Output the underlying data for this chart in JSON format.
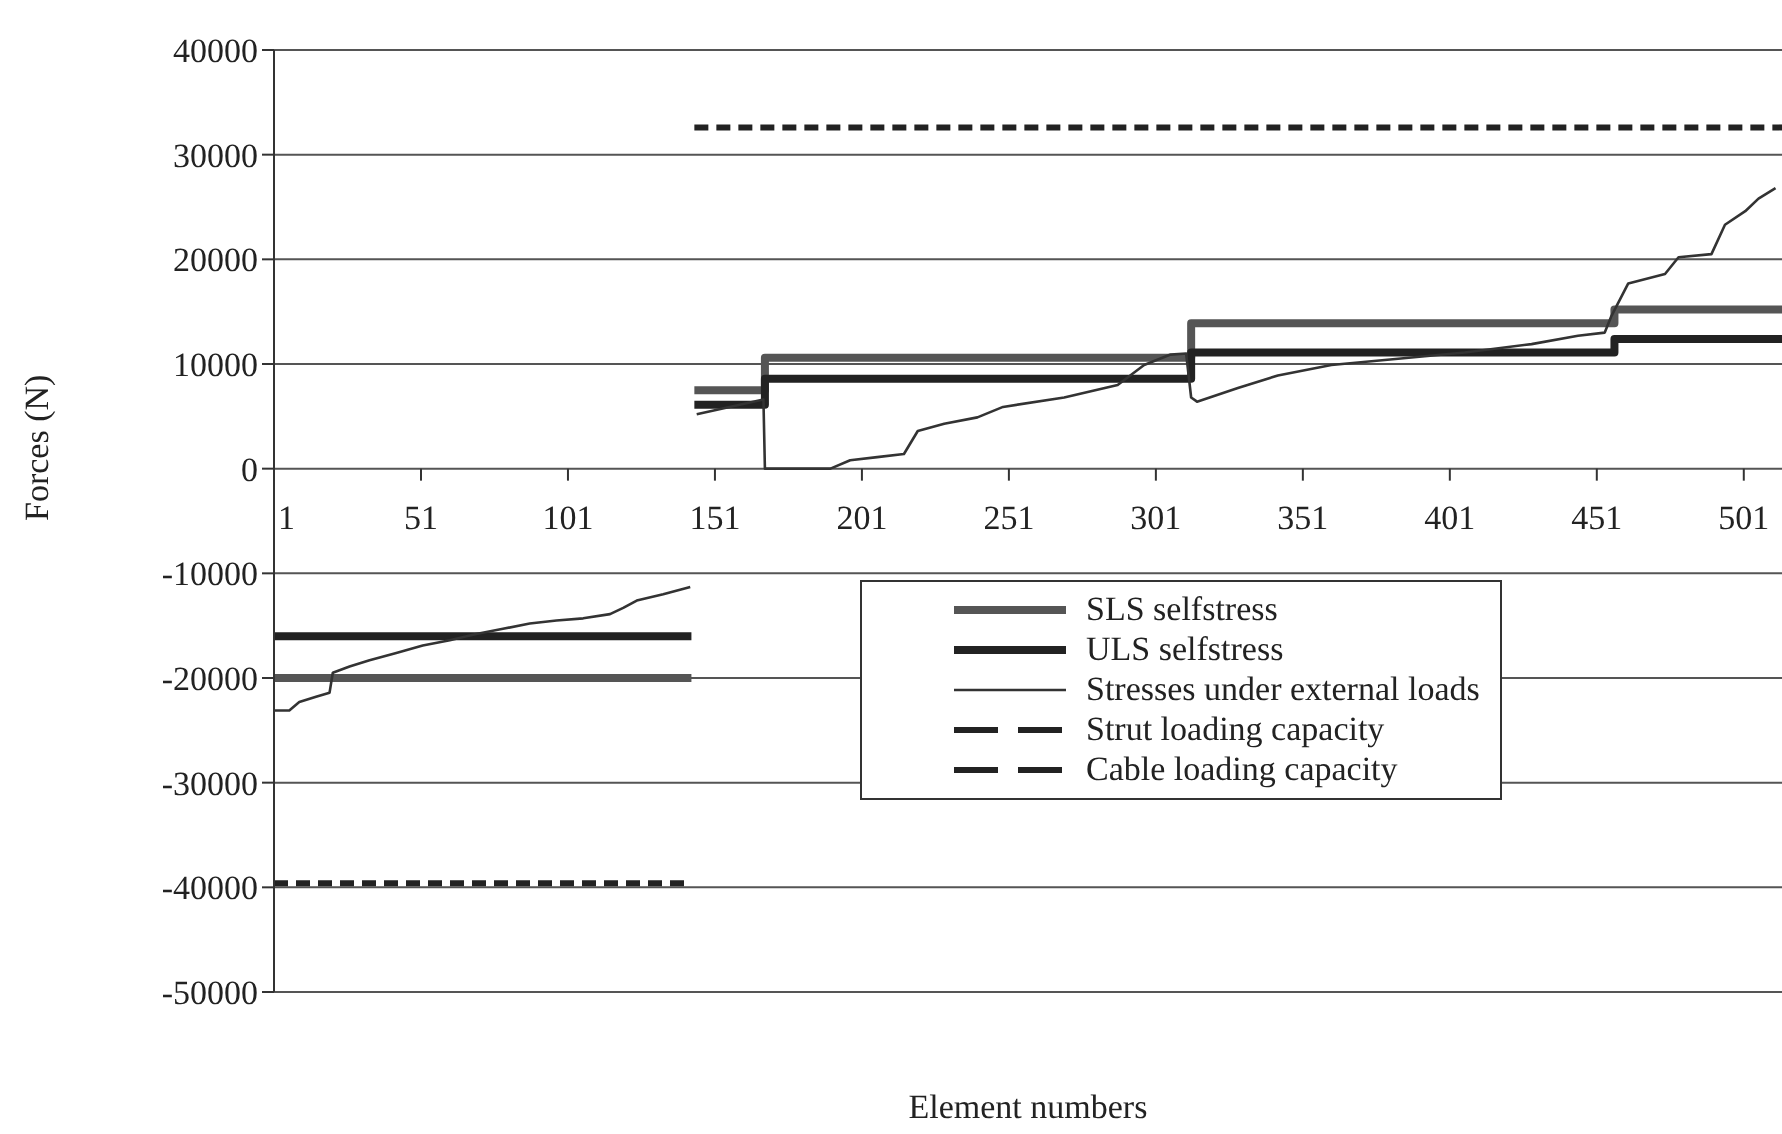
{
  "chart_data": {
    "type": "line",
    "xlabel": "Element numbers",
    "ylabel": "Forces (N)",
    "xlim": [
      1,
      514
    ],
    "xticks": [
      1,
      51,
      101,
      151,
      201,
      251,
      301,
      351,
      401,
      451,
      501
    ],
    "ylim": [
      -50000,
      40000
    ],
    "yticks": [
      -50000,
      -40000,
      -30000,
      -20000,
      -10000,
      0,
      10000,
      20000,
      30000,
      40000
    ],
    "grid": "y",
    "legend": "bottom right",
    "marker": "none",
    "series": [
      {
        "name": "SLS selfstress",
        "color": "#555555",
        "line_style": "solid",
        "x": [
          1,
          143,
          143.5,
          144,
          168,
          168,
          313,
          313,
          457,
          457,
          514
        ],
        "values": [
          -20000,
          -20000,
          null,
          7500,
          7500,
          10600,
          10600,
          13900,
          13900,
          15200,
          15200
        ]
      },
      {
        "name": "ULS selfstress",
        "color": "#222222",
        "line_style": "solid",
        "x": [
          1,
          143,
          143.5,
          144,
          168,
          168,
          313,
          313,
          457,
          457,
          514
        ],
        "values": [
          -16000,
          -16000,
          null,
          6100,
          6100,
          8600,
          8600,
          11100,
          11100,
          12400,
          12400
        ]
      },
      {
        "name": "Stresses under external loads",
        "color": "#333333",
        "line_style": "solid",
        "x": [
          1,
          6.2,
          9.6,
          15.3,
          19.9,
          21,
          26.7,
          33.5,
          42.6,
          51.6,
          60.8,
          69.8,
          78.9,
          88,
          97.1,
          106.2,
          115.3,
          119.8,
          124.4,
          133.4,
          142.6,
          143.5,
          144.8,
          167.5,
          168,
          190.3,
          197,
          206.2,
          215.3,
          220,
          229,
          240.3,
          249,
          269.8,
          288,
          297,
          306,
          311.3,
          313,
          315,
          328.9,
          342.5,
          360.7,
          383.4,
          406.1,
          428.8,
          444.6,
          453.7,
          456,
          461.7,
          474.2,
          478.8,
          490,
          494.6,
          501.5,
          506,
          511.8
        ],
        "values": [
          -23100,
          -23100,
          -22300,
          -21800,
          -21400,
          -19500,
          -18900,
          -18300,
          -17600,
          -16900,
          -16400,
          -15800,
          -15300,
          -14800,
          -14500,
          -14300,
          -13900,
          -13300,
          -12600,
          -12000,
          -11300,
          null,
          5200,
          6600,
          0,
          0,
          800,
          1100,
          1400,
          3600,
          4300,
          4900,
          5900,
          6800,
          8000,
          9900,
          10900,
          11000,
          6800,
          6400,
          7700,
          8900,
          9900,
          10500,
          11100,
          11900,
          12700,
          13000,
          14600,
          17700,
          18600,
          20200,
          20500,
          23300,
          24600,
          25800,
          26800
        ]
      },
      {
        "name": "Strut loading capacity",
        "color": "#222222",
        "line_style": "dashed",
        "x": [
          1,
          143
        ],
        "values": [
          -39600,
          -39600
        ]
      },
      {
        "name": "Cable loading capacity",
        "color": "#222222",
        "line_style": "dashed",
        "x": [
          144,
          514
        ],
        "values": [
          32600,
          32600
        ]
      }
    ]
  }
}
